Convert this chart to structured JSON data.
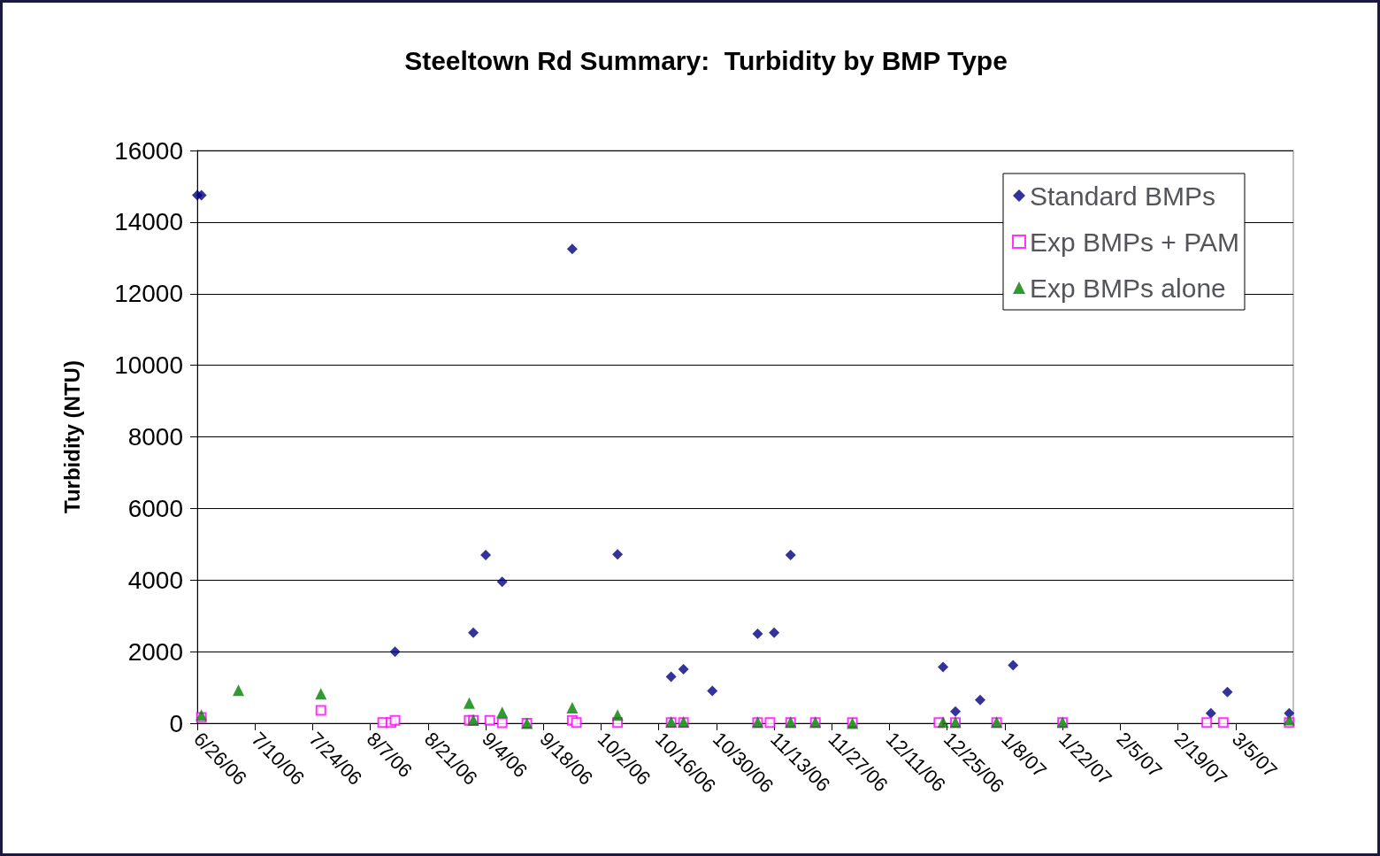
{
  "chart_data": {
    "type": "scatter",
    "title": "Steeltown Rd Summary:  Turbidity by BMP Type",
    "ylabel": "Turbidity (NTU)",
    "xlim": [
      "2006-06-26",
      "2007-03-19"
    ],
    "xticks": [
      {
        "value": "2006-06-26",
        "label": "6/26/06"
      },
      {
        "value": "2006-07-10",
        "label": "7/10/06"
      },
      {
        "value": "2006-07-24",
        "label": "7/24/06"
      },
      {
        "value": "2006-08-07",
        "label": "8/7/06"
      },
      {
        "value": "2006-08-21",
        "label": "8/21/06"
      },
      {
        "value": "2006-09-04",
        "label": "9/4/06"
      },
      {
        "value": "2006-09-18",
        "label": "9/18/06"
      },
      {
        "value": "2006-10-02",
        "label": "10/2/06"
      },
      {
        "value": "2006-10-16",
        "label": "10/16/06"
      },
      {
        "value": "2006-10-30",
        "label": "10/30/06"
      },
      {
        "value": "2006-11-13",
        "label": "11/13/06"
      },
      {
        "value": "2006-11-27",
        "label": "11/27/06"
      },
      {
        "value": "2006-12-11",
        "label": "12/11/06"
      },
      {
        "value": "2006-12-25",
        "label": "12/25/06"
      },
      {
        "value": "2007-01-08",
        "label": "1/8/07"
      },
      {
        "value": "2007-01-22",
        "label": "1/22/07"
      },
      {
        "value": "2007-02-05",
        "label": "2/5/07"
      },
      {
        "value": "2007-02-19",
        "label": "2/19/07"
      },
      {
        "value": "2007-03-05",
        "label": "3/5/07"
      }
    ],
    "ylim": [
      0,
      16000
    ],
    "yticks": [
      0,
      2000,
      4000,
      6000,
      8000,
      10000,
      12000,
      14000,
      16000
    ],
    "grid": "y",
    "legend": "top right",
    "series": [
      {
        "name": "Standard BMPs",
        "color": "#000080",
        "marker": "diamond",
        "x": [
          "2006-06-26",
          "2006-06-27",
          "2006-08-13",
          "2006-09-01",
          "2006-09-04",
          "2006-09-08",
          "2006-09-25",
          "2006-10-06",
          "2006-10-19",
          "2006-10-22",
          "2006-10-29",
          "2006-11-09",
          "2006-11-13",
          "2006-11-17",
          "2006-12-24",
          "2006-12-27",
          "2007-01-02",
          "2007-01-10",
          "2007-02-27",
          "2007-03-03",
          "2007-03-18"
        ],
        "values": [
          14750,
          14750,
          2000,
          2530,
          4700,
          3950,
          13250,
          4720,
          1300,
          1510,
          900,
          2500,
          2530,
          4700,
          1570,
          330,
          650,
          1620,
          280,
          870,
          280
        ]
      },
      {
        "name": "Exp BMPs + PAM",
        "color": "#ff00ff",
        "marker": "square",
        "x": [
          "2006-06-27",
          "2006-07-26",
          "2006-08-10",
          "2006-08-12",
          "2006-08-13",
          "2006-08-31",
          "2006-09-01",
          "2006-09-05",
          "2006-09-08",
          "2006-09-14",
          "2006-09-25",
          "2006-09-26",
          "2006-10-06",
          "2006-10-19",
          "2006-10-22",
          "2006-11-09",
          "2006-11-12",
          "2006-11-17",
          "2006-11-23",
          "2006-12-02",
          "2006-12-23",
          "2006-12-27",
          "2007-01-06",
          "2007-01-22",
          "2007-02-26",
          "2007-03-02",
          "2007-03-18"
        ],
        "values": [
          160,
          360,
          20,
          20,
          80,
          80,
          80,
          80,
          10,
          0,
          80,
          20,
          20,
          20,
          20,
          20,
          20,
          20,
          20,
          20,
          20,
          20,
          20,
          20,
          20,
          20,
          20
        ]
      },
      {
        "name": "Exp BMPs alone",
        "color": "#008000",
        "marker": "triangle",
        "x": [
          "2006-06-27",
          "2006-07-06",
          "2006-07-26",
          "2006-08-31",
          "2006-09-01",
          "2006-09-08",
          "2006-09-14",
          "2006-09-25",
          "2006-10-06",
          "2006-10-19",
          "2006-10-22",
          "2006-11-09",
          "2006-11-17",
          "2006-11-23",
          "2006-12-02",
          "2006-12-24",
          "2006-12-27",
          "2007-01-06",
          "2007-01-22",
          "2007-03-18"
        ],
        "values": [
          230,
          920,
          820,
          560,
          90,
          300,
          0,
          430,
          230,
          40,
          40,
          30,
          30,
          30,
          0,
          30,
          30,
          30,
          30,
          100
        ]
      }
    ]
  }
}
